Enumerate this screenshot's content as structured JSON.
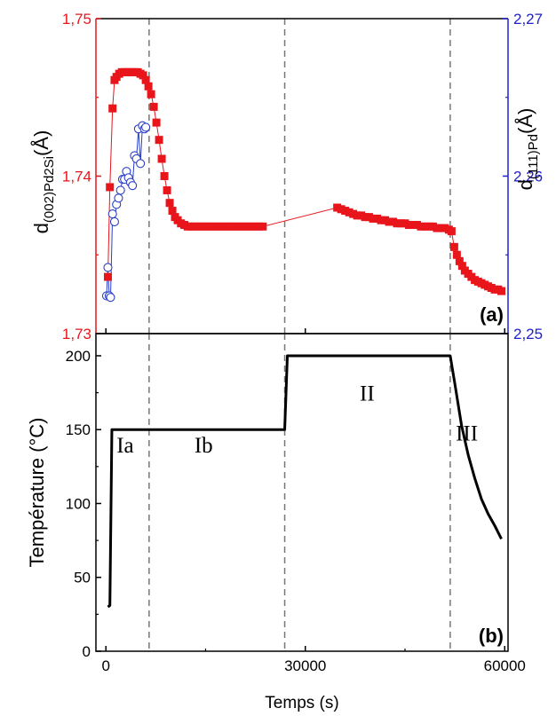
{
  "colors": {
    "left_axis": "#e8151b",
    "right_axis": "#2020d0",
    "square_series": "#e8151b",
    "circle_series": "#2a3fc8",
    "temperature": "#000000",
    "guides": "#777777"
  },
  "chart_data": [
    {
      "type": "scatter",
      "panel_tag": "(a)",
      "xlim": [
        -1500,
        60500
      ],
      "grid": false,
      "ylabel_left": {
        "main": "d",
        "sub": "(002)Pd2Si",
        "unit": "(Å)"
      },
      "ylabel_right": {
        "main": "d",
        "sub": "(111)Pd",
        "unit": "(Å)"
      },
      "ylim_left": [
        1.73,
        1.75
      ],
      "ylim_right": [
        2.25,
        2.27
      ],
      "yticks_left": [
        1.73,
        1.74,
        1.75
      ],
      "yticks_left_labels": [
        "1,73",
        "1,74",
        "1,75"
      ],
      "yticks_right": [
        2.25,
        2.26,
        2.27
      ],
      "yticks_right_labels": [
        "2,25",
        "2,26",
        "2,27"
      ],
      "guide_lines_x": [
        6500,
        26900,
        51800
      ],
      "series": [
        {
          "axis": "left",
          "marker": "square",
          "x": [
            300,
            600,
            1000,
            1300,
            1600,
            2000,
            2400,
            2800,
            3200,
            3600,
            4000,
            4400,
            4800,
            5200,
            5600,
            6000,
            6400,
            6800,
            7200,
            7600,
            8000,
            8400,
            8800,
            9200,
            9600,
            10000,
            10400,
            10800,
            11300,
            11800,
            12300,
            12800,
            13400,
            14000,
            14600,
            15200,
            15800,
            16400,
            17000,
            17600,
            18200,
            18800,
            19400,
            20000,
            20600,
            21200,
            21800,
            22400,
            23000,
            23600,
            34800,
            35400,
            36000,
            36600,
            37200,
            37800,
            38400,
            39000,
            39600,
            40200,
            40800,
            41400,
            42000,
            42600,
            43200,
            43800,
            44400,
            45000,
            45600,
            46200,
            46800,
            47400,
            48000,
            48600,
            49200,
            49800,
            50400,
            51000,
            51600,
            52000,
            52400,
            52800,
            53200,
            53600,
            54000,
            54500,
            55000,
            55500,
            56000,
            56500,
            57000,
            57500,
            58000,
            58500,
            59000,
            59500
          ],
          "y": [
            1.7336,
            1.7393,
            1.7443,
            1.7461,
            1.7463,
            1.7465,
            1.7466,
            1.7466,
            1.7466,
            1.7466,
            1.7466,
            1.7466,
            1.7466,
            1.7465,
            1.7464,
            1.7461,
            1.7457,
            1.7452,
            1.7444,
            1.7434,
            1.7423,
            1.7411,
            1.74,
            1.7391,
            1.7383,
            1.7378,
            1.7374,
            1.7372,
            1.737,
            1.7369,
            1.7368,
            1.7368,
            1.7368,
            1.7368,
            1.7368,
            1.7368,
            1.7368,
            1.7368,
            1.7368,
            1.7368,
            1.7368,
            1.7368,
            1.7368,
            1.7368,
            1.7368,
            1.7368,
            1.7368,
            1.7368,
            1.7368,
            1.7368,
            1.738,
            1.7379,
            1.7378,
            1.7377,
            1.7376,
            1.7375,
            1.7375,
            1.7374,
            1.7374,
            1.7373,
            1.7373,
            1.7372,
            1.7372,
            1.7371,
            1.7371,
            1.737,
            1.737,
            1.737,
            1.7369,
            1.7369,
            1.7369,
            1.7368,
            1.7368,
            1.7368,
            1.7368,
            1.7367,
            1.7367,
            1.7367,
            1.7366,
            1.7365,
            1.7355,
            1.735,
            1.7346,
            1.7343,
            1.734,
            1.7338,
            1.7336,
            1.7334,
            1.7333,
            1.7332,
            1.7331,
            1.733,
            1.7329,
            1.7328,
            1.7328,
            1.7327
          ]
        },
        {
          "axis": "right",
          "marker": "open-circle",
          "x": [
            100,
            300,
            500,
            700,
            1000,
            1300,
            1600,
            1900,
            2200,
            2500,
            2800,
            3100,
            3400,
            3700,
            4000,
            4300,
            4600,
            4900,
            5200,
            5500,
            5800,
            6000
          ],
          "y": [
            2.2524,
            2.2542,
            2.2524,
            2.2523,
            2.2576,
            2.2571,
            2.2582,
            2.2586,
            2.2591,
            2.2598,
            2.2598,
            2.2603,
            2.2599,
            2.2596,
            2.2594,
            2.2613,
            2.2611,
            2.263,
            2.2608,
            2.2632,
            2.263,
            2.2631
          ]
        }
      ]
    },
    {
      "type": "line",
      "panel_tag": "(b)",
      "xlabel": "Temps (s)",
      "ylabel": "Température (°C)",
      "xlim": [
        -1500,
        60500
      ],
      "ylim": [
        0,
        215
      ],
      "xticks": [
        0,
        30000,
        60000
      ],
      "xtick_labels": [
        "0",
        "30000",
        "60000"
      ],
      "yticks": [
        0,
        50,
        100,
        150,
        200
      ],
      "ytick_labels": [
        "0",
        "50",
        "100",
        "150",
        "200"
      ],
      "grid": false,
      "guide_lines_x": [
        6500,
        26900,
        51800
      ],
      "series": [
        {
          "x": [
            300,
            600,
            900,
            1200,
            6500,
            12000,
            20000,
            26600,
            26900,
            27300,
            35000,
            45000,
            51800,
            52500,
            53500,
            54500,
            55500,
            56500,
            57500,
            58500,
            59500
          ],
          "y": [
            30,
            31,
            150,
            150,
            150,
            150,
            150,
            150,
            150,
            200,
            200,
            200,
            200,
            181,
            153,
            133,
            117,
            103,
            93,
            85,
            76
          ]
        }
      ],
      "annotations": [
        {
          "text": "Ia",
          "x": 2900,
          "y": 140
        },
        {
          "text": "Ib",
          "x": 14700,
          "y": 140
        },
        {
          "text": "II",
          "x": 39300,
          "y": 175
        },
        {
          "text": "III",
          "x": 54300,
          "y": 148
        }
      ]
    }
  ]
}
